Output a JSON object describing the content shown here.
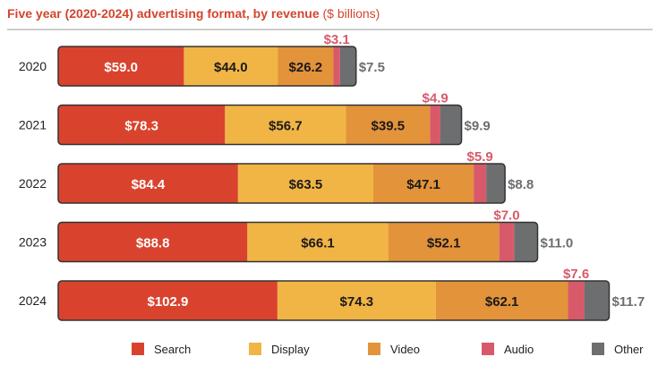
{
  "title": "Five year (2020-2024) advertising format, by revenue",
  "title_unit": "($ billions)",
  "colors": {
    "Search": "#d9432e",
    "Display": "#f1b545",
    "Video": "#e3933a",
    "Audio": "#d85a6a",
    "Other": "#6d6e70",
    "title": "#d4442c",
    "audio_label": "#d85a6a",
    "other_label": "#6d6e70"
  },
  "chart_data": {
    "type": "bar",
    "orientation": "horizontal",
    "stacked": true,
    "categories": [
      "2020",
      "2021",
      "2022",
      "2023",
      "2024"
    ],
    "series": [
      {
        "name": "Search",
        "values": [
          59.0,
          78.3,
          84.4,
          88.8,
          102.9
        ],
        "labels": [
          "$59.0",
          "$78.3",
          "$84.4",
          "$88.8",
          "$102.9"
        ]
      },
      {
        "name": "Display",
        "values": [
          44.0,
          56.7,
          63.5,
          66.1,
          74.3
        ],
        "labels": [
          "$44.0",
          "$56.7",
          "$63.5",
          "$66.1",
          "$74.3"
        ]
      },
      {
        "name": "Video",
        "values": [
          26.2,
          39.5,
          47.1,
          52.1,
          62.1
        ],
        "labels": [
          "$26.2",
          "$39.5",
          "$47.1",
          "$52.1",
          "$62.1"
        ]
      },
      {
        "name": "Audio",
        "values": [
          3.1,
          4.9,
          5.9,
          7.0,
          7.6
        ],
        "labels": [
          "$3.1",
          "$4.9",
          "$5.9",
          "$7.0",
          "$7.6"
        ]
      },
      {
        "name": "Other",
        "values": [
          7.5,
          9.9,
          8.8,
          11.0,
          11.7
        ],
        "labels": [
          "$7.5",
          "$9.9",
          "$8.8",
          "$11.0",
          "$11.7"
        ]
      }
    ],
    "xlim": [
      0,
      260
    ],
    "grid": false,
    "legend": "bottom"
  }
}
